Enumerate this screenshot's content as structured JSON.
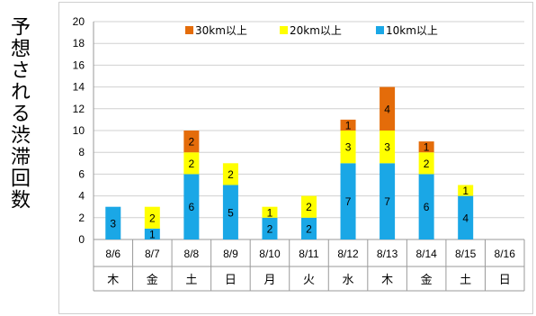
{
  "chart_data": {
    "type": "bar",
    "stacked": true,
    "ylabel": "予想される渋滞回数",
    "ylim": [
      0,
      20
    ],
    "yticks": [
      0,
      2,
      4,
      6,
      8,
      10,
      12,
      14,
      16,
      18,
      20
    ],
    "grid": true,
    "legend_position": "top",
    "categories": [
      "8/6",
      "8/7",
      "8/8",
      "8/9",
      "8/10",
      "8/11",
      "8/12",
      "8/13",
      "8/14",
      "8/15",
      "8/16"
    ],
    "weekdays": [
      "木",
      "金",
      "土",
      "日",
      "月",
      "火",
      "水",
      "木",
      "金",
      "土",
      "日"
    ],
    "series": [
      {
        "name": "10km以上",
        "color": "#1aa7e6",
        "values": [
          3,
          1,
          6,
          5,
          2,
          2,
          7,
          7,
          6,
          4,
          0
        ]
      },
      {
        "name": "20km以上",
        "color": "#ffff00",
        "values": [
          0,
          2,
          2,
          2,
          1,
          2,
          3,
          3,
          2,
          1,
          0
        ]
      },
      {
        "name": "30km以上",
        "color": "#e46c0a",
        "values": [
          0,
          0,
          2,
          0,
          0,
          0,
          1,
          4,
          1,
          0,
          0
        ]
      }
    ],
    "legend_order": [
      "30km以上",
      "20km以上",
      "10km以上"
    ]
  }
}
